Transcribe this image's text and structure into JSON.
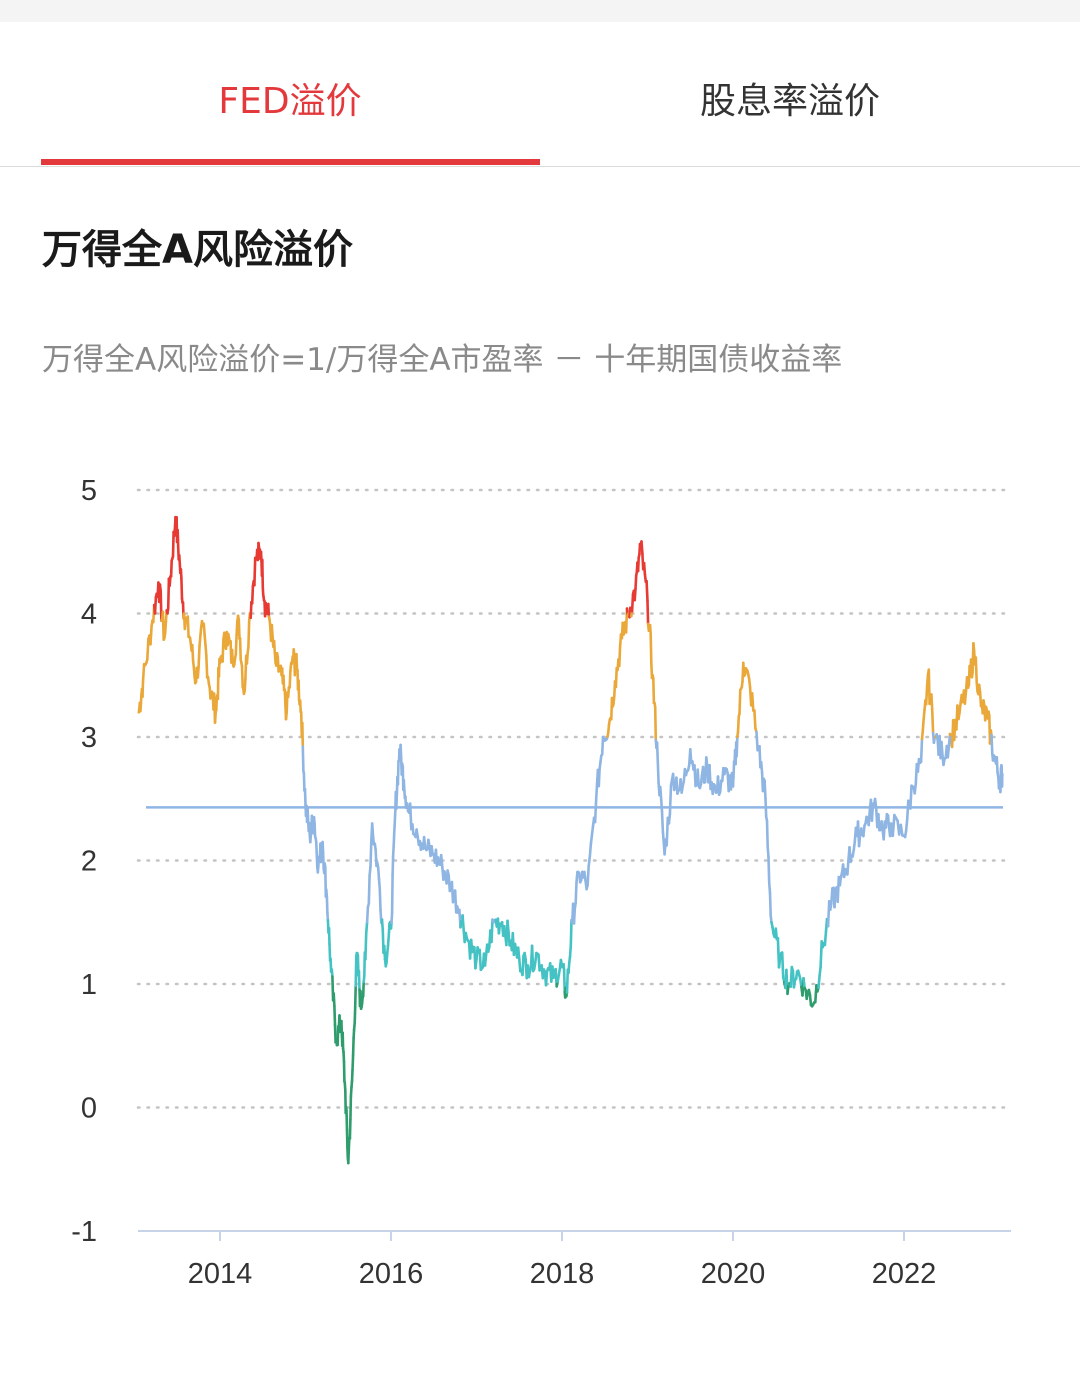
{
  "tabs": [
    {
      "label": "FED溢价",
      "active": true
    },
    {
      "label": "股息率溢价",
      "active": false
    }
  ],
  "title": "万得全A风险溢价",
  "formula": "万得全A风险溢价=1/万得全A市盈率 － 十年期国债收益率",
  "colors": {
    "accent": "#e4393c",
    "red": "#e63a33",
    "orange": "#eaa83a",
    "blue": "#8fb5e3",
    "teal": "#45c2c3",
    "green": "#2f9c6c",
    "mean_line": "#8fb5e3"
  },
  "chart_data": {
    "type": "line",
    "title": "",
    "xlabel": "",
    "ylabel": "",
    "ylim": [
      -1,
      5
    ],
    "yticks": [
      "5",
      "4",
      "3",
      "2",
      "1",
      "0",
      "-1"
    ],
    "xticks": [
      "2014",
      "2016",
      "2018",
      "2020",
      "2022"
    ],
    "color_bands": [
      {
        "color": "red",
        "range": "> 4"
      },
      {
        "color": "orange",
        "range": "3 – 4"
      },
      {
        "color": "blue",
        "range": "1.5 – 3"
      },
      {
        "color": "teal",
        "range": "1 – 1.5"
      },
      {
        "color": "green",
        "range": "< 1"
      }
    ],
    "reference_line": {
      "label": "",
      "value": 2.43
    },
    "grid": "horizontal dotted",
    "series": [
      {
        "name": "",
        "points": [
          [
            2013.05,
            3.2
          ],
          [
            2013.1,
            3.45
          ],
          [
            2013.2,
            3.9
          ],
          [
            2013.28,
            4.25
          ],
          [
            2013.35,
            3.8
          ],
          [
            2013.42,
            4.3
          ],
          [
            2013.48,
            4.78
          ],
          [
            2013.53,
            4.4
          ],
          [
            2013.58,
            4.0
          ],
          [
            2013.65,
            3.8
          ],
          [
            2013.72,
            3.45
          ],
          [
            2013.8,
            3.9
          ],
          [
            2013.88,
            3.4
          ],
          [
            2013.95,
            3.2
          ],
          [
            2014.0,
            3.6
          ],
          [
            2014.08,
            3.85
          ],
          [
            2014.15,
            3.6
          ],
          [
            2014.22,
            3.95
          ],
          [
            2014.28,
            3.35
          ],
          [
            2014.35,
            4.0
          ],
          [
            2014.42,
            4.45
          ],
          [
            2014.48,
            4.5
          ],
          [
            2014.52,
            4.1
          ],
          [
            2014.58,
            3.95
          ],
          [
            2014.65,
            3.6
          ],
          [
            2014.72,
            3.5
          ],
          [
            2014.78,
            3.2
          ],
          [
            2014.85,
            3.65
          ],
          [
            2014.9,
            3.55
          ],
          [
            2014.95,
            3.2
          ],
          [
            2015.0,
            2.45
          ],
          [
            2015.05,
            2.2
          ],
          [
            2015.1,
            2.35
          ],
          [
            2015.15,
            1.95
          ],
          [
            2015.2,
            2.15
          ],
          [
            2015.25,
            1.7
          ],
          [
            2015.3,
            1.1
          ],
          [
            2015.36,
            0.55
          ],
          [
            2015.42,
            0.7
          ],
          [
            2015.46,
            0.2
          ],
          [
            2015.5,
            -0.45
          ],
          [
            2015.55,
            0.3
          ],
          [
            2015.6,
            1.25
          ],
          [
            2015.65,
            0.8
          ],
          [
            2015.7,
            1.2
          ],
          [
            2015.78,
            2.3
          ],
          [
            2015.86,
            1.85
          ],
          [
            2015.93,
            1.2
          ],
          [
            2016.0,
            1.45
          ],
          [
            2016.05,
            2.4
          ],
          [
            2016.1,
            2.9
          ],
          [
            2016.15,
            2.65
          ],
          [
            2016.2,
            2.4
          ],
          [
            2016.3,
            2.25
          ],
          [
            2016.4,
            2.1
          ],
          [
            2016.5,
            2.05
          ],
          [
            2016.6,
            1.95
          ],
          [
            2016.7,
            1.8
          ],
          [
            2016.8,
            1.6
          ],
          [
            2016.9,
            1.35
          ],
          [
            2017.0,
            1.2
          ],
          [
            2017.1,
            1.15
          ],
          [
            2017.2,
            1.5
          ],
          [
            2017.3,
            1.5
          ],
          [
            2017.4,
            1.35
          ],
          [
            2017.5,
            1.2
          ],
          [
            2017.6,
            1.15
          ],
          [
            2017.7,
            1.25
          ],
          [
            2017.8,
            1.1
          ],
          [
            2017.9,
            1.05
          ],
          [
            2018.0,
            1.15
          ],
          [
            2018.05,
            0.9
          ],
          [
            2018.12,
            1.5
          ],
          [
            2018.2,
            1.9
          ],
          [
            2018.3,
            1.8
          ],
          [
            2018.4,
            2.5
          ],
          [
            2018.48,
            3.0
          ],
          [
            2018.55,
            3.1
          ],
          [
            2018.62,
            3.45
          ],
          [
            2018.7,
            3.8
          ],
          [
            2018.78,
            4.0
          ],
          [
            2018.86,
            4.2
          ],
          [
            2018.92,
            4.55
          ],
          [
            2019.0,
            4.1
          ],
          [
            2019.06,
            3.5
          ],
          [
            2019.12,
            2.8
          ],
          [
            2019.2,
            2.05
          ],
          [
            2019.3,
            2.7
          ],
          [
            2019.4,
            2.55
          ],
          [
            2019.5,
            2.9
          ],
          [
            2019.6,
            2.6
          ],
          [
            2019.7,
            2.75
          ],
          [
            2019.8,
            2.55
          ],
          [
            2019.9,
            2.7
          ],
          [
            2020.0,
            2.6
          ],
          [
            2020.05,
            3.0
          ],
          [
            2020.12,
            3.6
          ],
          [
            2020.2,
            3.4
          ],
          [
            2020.3,
            2.9
          ],
          [
            2020.38,
            2.5
          ],
          [
            2020.45,
            1.5
          ],
          [
            2020.55,
            1.2
          ],
          [
            2020.65,
            1.0
          ],
          [
            2020.75,
            1.1
          ],
          [
            2020.85,
            0.95
          ],
          [
            2020.95,
            0.85
          ],
          [
            2021.05,
            1.3
          ],
          [
            2021.15,
            1.65
          ],
          [
            2021.25,
            1.8
          ],
          [
            2021.35,
            2.0
          ],
          [
            2021.45,
            2.2
          ],
          [
            2021.55,
            2.3
          ],
          [
            2021.65,
            2.45
          ],
          [
            2021.75,
            2.25
          ],
          [
            2021.85,
            2.3
          ],
          [
            2022.0,
            2.2
          ],
          [
            2022.1,
            2.6
          ],
          [
            2022.2,
            2.8
          ],
          [
            2022.28,
            3.5
          ],
          [
            2022.36,
            3.0
          ],
          [
            2022.45,
            2.85
          ],
          [
            2022.55,
            3.0
          ],
          [
            2022.65,
            3.2
          ],
          [
            2022.75,
            3.4
          ],
          [
            2022.82,
            3.7
          ],
          [
            2022.9,
            3.25
          ],
          [
            2022.98,
            3.15
          ],
          [
            2023.05,
            2.85
          ],
          [
            2023.12,
            2.65
          ],
          [
            2023.15,
            2.7
          ]
        ]
      }
    ]
  }
}
